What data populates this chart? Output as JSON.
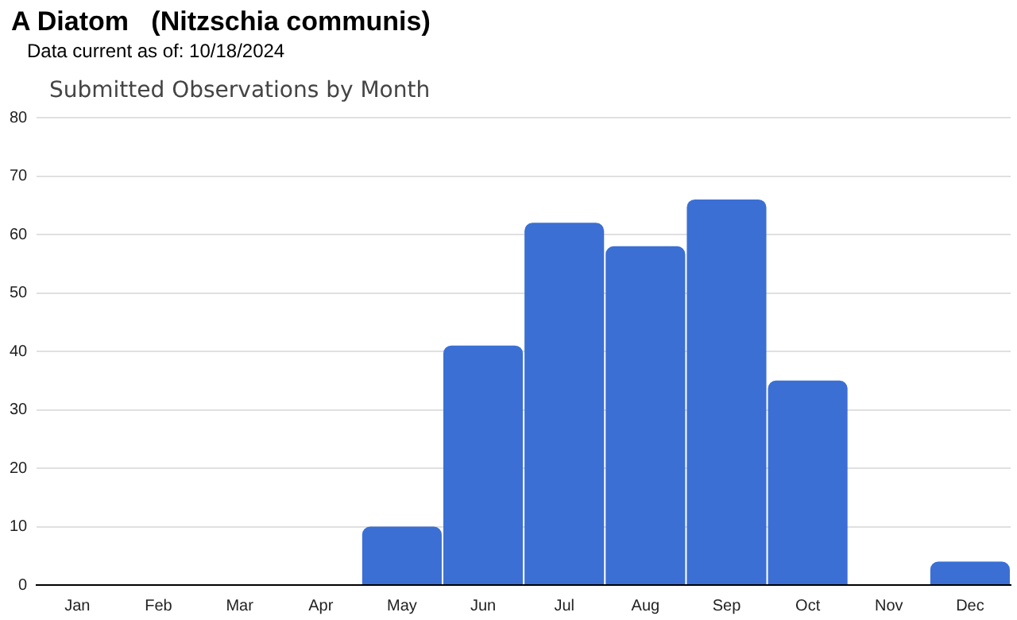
{
  "chart_data": {
    "type": "bar",
    "title": "A Diatom   (Nitzschia communis)",
    "subtitle": "Data current as of: 10/18/2024",
    "annotations": [
      "Submitted Observations by Month"
    ],
    "categories": [
      "Jan",
      "Feb",
      "Mar",
      "Apr",
      "May",
      "Jun",
      "Jul",
      "Aug",
      "Sep",
      "Oct",
      "Nov",
      "Dec"
    ],
    "values": [
      0,
      0,
      0,
      0,
      10,
      41,
      62,
      58,
      66,
      35,
      0,
      4
    ],
    "color": "#3b6fd4",
    "ylim": [
      0,
      80
    ],
    "yticks": [
      0,
      10,
      20,
      30,
      40,
      50,
      60,
      70,
      80
    ],
    "grid": "y",
    "legend": false
  }
}
